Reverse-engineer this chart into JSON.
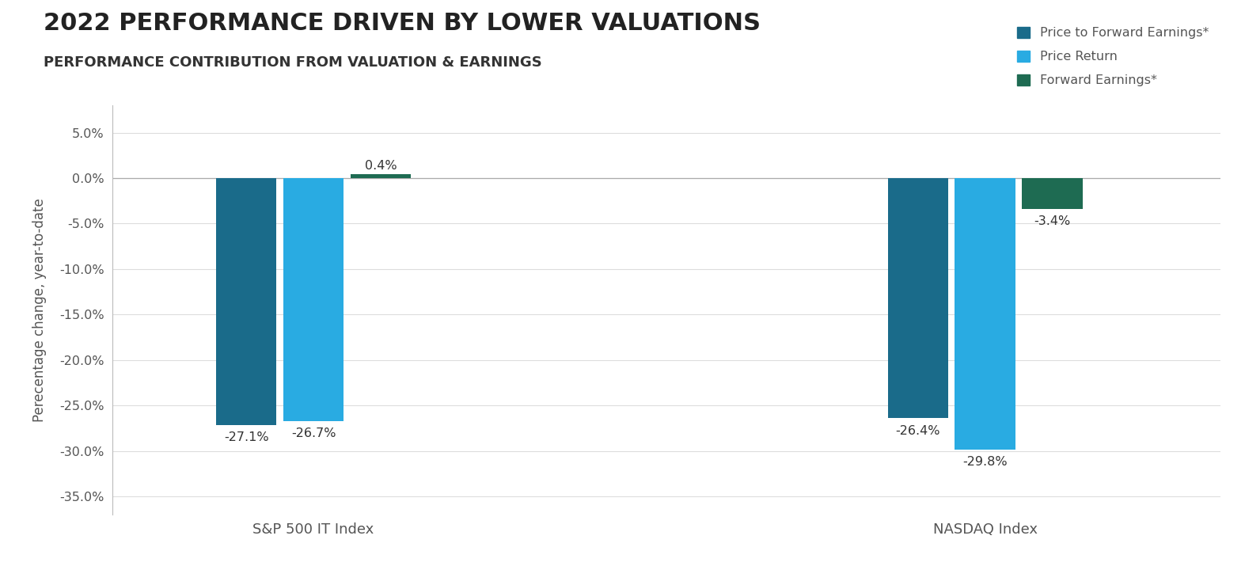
{
  "title": "2022 PERFORMANCE DRIVEN BY LOWER VALUATIONS",
  "subtitle": "PERFORMANCE CONTRIBUTION FROM VALUATION & EARNINGS",
  "ylabel": "Perecentage change, year-to-date",
  "groups": [
    "S&P 500 IT Index",
    "NASDAQ Index"
  ],
  "series": [
    {
      "name": "Price to Forward Earnings*",
      "color": "#1a6b8a",
      "values": [
        -27.1,
        -26.4
      ]
    },
    {
      "name": "Price Return",
      "color": "#29abe2",
      "values": [
        -26.7,
        -29.8
      ]
    },
    {
      "name": "Forward Earnings*",
      "color": "#1e6b52",
      "values": [
        0.4,
        -3.4
      ]
    }
  ],
  "ylim": [
    -37,
    8
  ],
  "yticks": [
    5.0,
    0.0,
    -5.0,
    -10.0,
    -15.0,
    -20.0,
    -25.0,
    -30.0,
    -35.0
  ],
  "background_color": "#ffffff",
  "title_fontsize": 22,
  "subtitle_fontsize": 13,
  "bar_width": 0.18,
  "legend_labels": [
    "Price to Forward Earnings*",
    "Price Return",
    "Forward Earnings*"
  ],
  "legend_colors": [
    "#1a6b8a",
    "#29abe2",
    "#1e6b52"
  ],
  "label_fontsize": 11.5,
  "axis_color": "#888888",
  "tick_label_color": "#555555",
  "text_color": "#333333"
}
